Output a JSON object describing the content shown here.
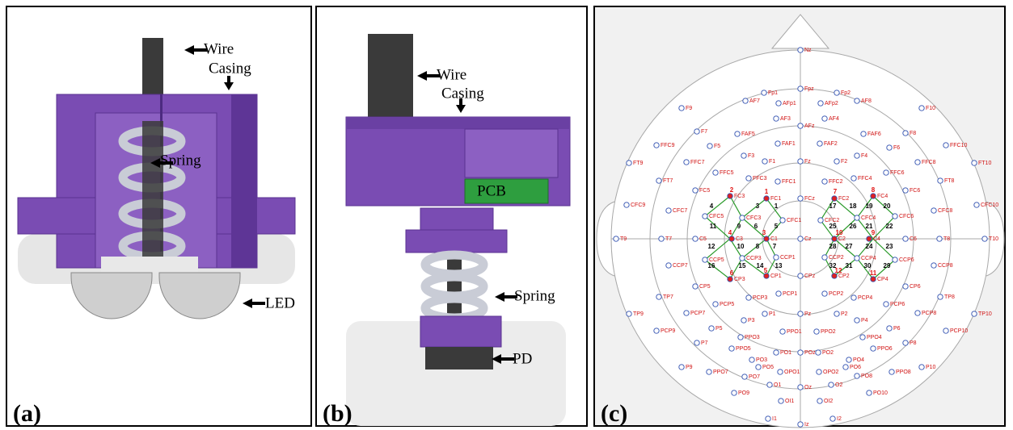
{
  "panels": [
    {
      "label": "(a)",
      "annotations": {
        "wire": "Wire",
        "casing": "Casing",
        "spring": "Spring",
        "led": "LED"
      }
    },
    {
      "label": "(b)",
      "annotations": {
        "wire": "Wire",
        "casing": "Casing",
        "pcb": "PCB",
        "spring": "Spring",
        "pd": "PD"
      }
    },
    {
      "label": "(c)",
      "electrodes": [
        "Nz",
        "Fpz",
        "Fp1",
        "Fp2",
        "AFp1",
        "AFp2",
        "AF7",
        "AF8",
        "F9",
        "F10",
        "AF3",
        "AF4",
        "AFz",
        "FAF5",
        "FAF6",
        "F7",
        "F8",
        "FFC9",
        "FFC10",
        "F5",
        "F6",
        "FAF1",
        "FAF2",
        "F3",
        "F4",
        "F1",
        "Fz",
        "F2",
        "FT9",
        "FT10",
        "FFC7",
        "FFC8",
        "FFC5",
        "FFC6",
        "FFC3",
        "FFC4",
        "FFC1",
        "FFC2",
        "FT7",
        "FT8",
        "FC5",
        "FC6",
        "FC3",
        "FC4",
        "FC1",
        "FCz",
        "FC2",
        "CFC9",
        "CFC10",
        "CFC7",
        "CFC8",
        "CFC5",
        "CFC6",
        "CFC3",
        "CFC4",
        "CFC1",
        "CFC2",
        "T9",
        "T7",
        "C5",
        "C3",
        "C1",
        "Cz",
        "C2",
        "C4",
        "C6",
        "T8",
        "T10",
        "CCP7",
        "CCP8",
        "CCP5",
        "CCP6",
        "CCP3",
        "CCP4",
        "CCP1",
        "CCP2",
        "CP5",
        "CP6",
        "CP3",
        "CP4",
        "CP1",
        "CPz",
        "CP2",
        "TP7",
        "TP8",
        "TP9",
        "TP10",
        "PCP7",
        "PCP8",
        "PCP5",
        "PCP6",
        "PCP3",
        "PCP4",
        "PCP1",
        "PCP2",
        "P1",
        "Pz",
        "P2",
        "P3",
        "P4",
        "P5",
        "P6",
        "PCP9",
        "PCP10",
        "P7",
        "P8",
        "PPO3",
        "PPO4",
        "PPO1",
        "PPO2",
        "PPO5",
        "PPO6",
        "PO3",
        "PO1",
        "POz",
        "PO2",
        "PO4",
        "P9",
        "P10",
        "PPO7",
        "PPO8",
        "PO5",
        "PO6",
        "PO7",
        "PO8",
        "OPO1",
        "OPO2",
        "O1",
        "Oz",
        "O2",
        "PO9",
        "PO10",
        "OI1",
        "OI2",
        "I1",
        "Iz",
        "I2"
      ],
      "sources": [
        2,
        1,
        4,
        3,
        6,
        5,
        7,
        8,
        10,
        9,
        12,
        11
      ],
      "channels": [
        4,
        3,
        1,
        11,
        9,
        6,
        5,
        12,
        10,
        8,
        7,
        16,
        15,
        14,
        13,
        17,
        18,
        19,
        20,
        25,
        26,
        21,
        22,
        28,
        27,
        24,
        23,
        32,
        31,
        30,
        29
      ]
    }
  ]
}
